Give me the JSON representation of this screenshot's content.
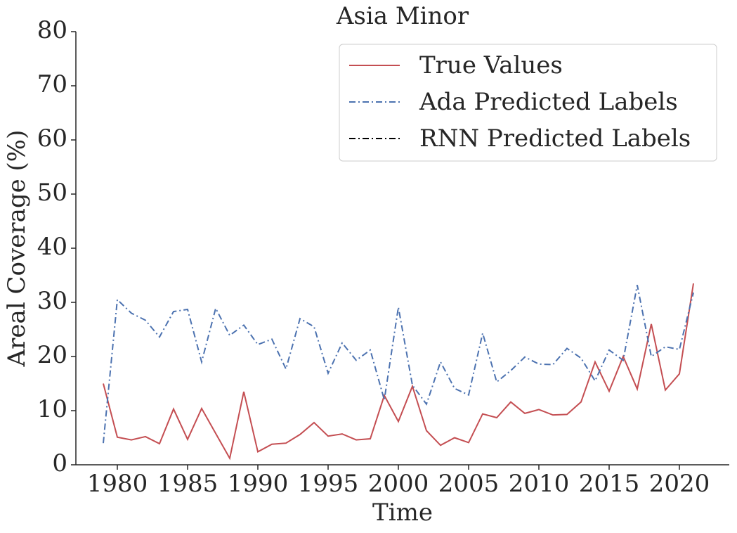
{
  "chart_data": {
    "type": "line",
    "title": "Asia Minor",
    "x_label": "Time",
    "y_label": "Areal Coverage (%)",
    "x": [
      1979,
      1980,
      1981,
      1982,
      1983,
      1984,
      1985,
      1986,
      1987,
      1988,
      1989,
      1990,
      1991,
      1992,
      1993,
      1994,
      1995,
      1996,
      1997,
      1998,
      1999,
      2000,
      2001,
      2002,
      2003,
      2004,
      2005,
      2006,
      2007,
      2008,
      2009,
      2010,
      2011,
      2012,
      2013,
      2014,
      2015,
      2016,
      2017,
      2018,
      2019,
      2020,
      2021
    ],
    "series": [
      {
        "name": "True Values",
        "color": "#c44e52",
        "dash": "solid",
        "values": [
          15,
          5.1,
          4.6,
          5.2,
          3.9,
          10.3,
          4.7,
          10.4,
          5.8,
          1.2,
          13.5,
          2.4,
          3.8,
          4.0,
          5.6,
          7.8,
          5.3,
          5.7,
          4.6,
          4.8,
          12.8,
          8.0,
          14.5,
          6.3,
          3.6,
          5.0,
          4.1,
          9.4,
          8.7,
          11.6,
          9.5,
          10.2,
          9.2,
          9.3,
          11.6,
          19.0,
          13.6,
          20.0,
          14.0,
          26.0,
          13.8,
          16.8,
          33.5
        ]
      },
      {
        "name": "Ada Predicted Labels",
        "color": "#4c72b0",
        "dash": "dashdot",
        "values": [
          4,
          30.5,
          28,
          26.7,
          23.6,
          28.3,
          28.7,
          19,
          28.9,
          23.9,
          25.8,
          22.2,
          23.2,
          17.7,
          27,
          25.5,
          16.9,
          22.5,
          19.3,
          21.2,
          12,
          29.1,
          14.7,
          11.2,
          19,
          14.1,
          12.9,
          24.3,
          15.3,
          17.4,
          19.9,
          18.6,
          18.5,
          21.5,
          19.7,
          15.5,
          21.2,
          19.3,
          33.2,
          20,
          21.8,
          21.3,
          31.8
        ]
      },
      {
        "name": "RNN Predicted Labels",
        "color": "#000000",
        "dash": "dashdot",
        "values": [
          null,
          null,
          null,
          null,
          null,
          null,
          null,
          null,
          null,
          null,
          null,
          null,
          null,
          null,
          null,
          null,
          null,
          null,
          null,
          null,
          null,
          null,
          null,
          null,
          null,
          null,
          null,
          null,
          null,
          null,
          null,
          null,
          null,
          null,
          null,
          null,
          null,
          null,
          null,
          null,
          null,
          null,
          null
        ]
      }
    ],
    "xlim": [
      1977.05,
      2023.55
    ],
    "xticks": [
      1980,
      1985,
      1990,
      1995,
      2000,
      2005,
      2010,
      2015,
      2020
    ],
    "ylim": [
      0,
      80
    ],
    "yticks": [
      0,
      10,
      20,
      30,
      40,
      50,
      60,
      70,
      80
    ],
    "grid": false,
    "legend": "upper right"
  }
}
